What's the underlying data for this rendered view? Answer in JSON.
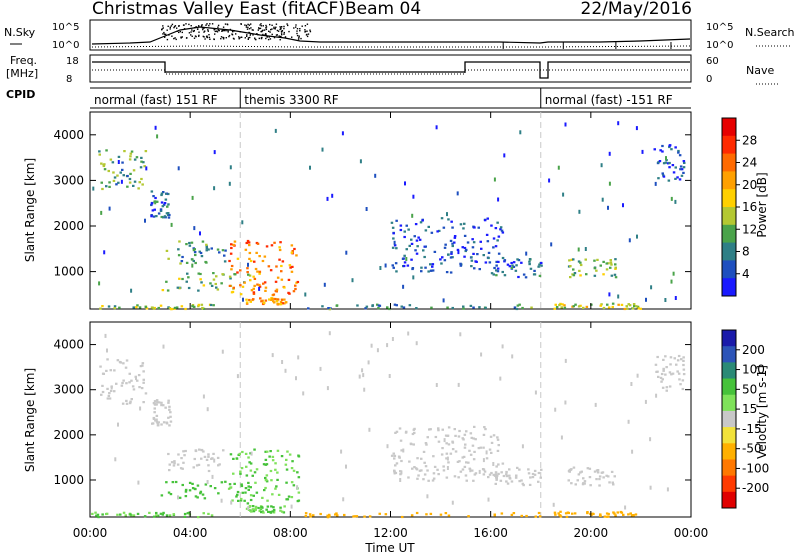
{
  "header": {
    "title": "Christmas Valley East (fitACF)",
    "beam": "Beam 04",
    "date": "22/May/2016"
  },
  "strip_labels": {
    "nsky": "N.Sky",
    "nsearch": "N.Search",
    "freq_line1": "Freq.",
    "freq_line2": "[MHz]",
    "nave": "Nave",
    "cpid": "CPID",
    "noise_ticks": [
      "10^5",
      "10^0"
    ],
    "freq_ticks": [
      "18",
      "8"
    ],
    "nave_ticks": [
      "60",
      "0"
    ]
  },
  "cpid_segments": [
    {
      "label": "normal (fast) 151 RF",
      "start_hour": 0,
      "end_hour": 6
    },
    {
      "label": "themis 3300 RF",
      "start_hour": 6,
      "end_hour": 18
    },
    {
      "label": "normal (fast) -151 RF",
      "start_hour": 18,
      "end_hour": 24
    }
  ],
  "axes": {
    "ylabel": "Slant Range [km]",
    "xlabel": "Time UT",
    "y_ticks": [
      "1000",
      "2000",
      "3000",
      "4000"
    ],
    "x_ticks": [
      "00:00",
      "04:00",
      "08:00",
      "12:00",
      "16:00",
      "20:00",
      "00:00"
    ]
  },
  "power_bar": {
    "label": "Power [dB]",
    "ticks": [
      "4",
      "8",
      "12",
      "16",
      "20",
      "24",
      "28"
    ],
    "colors": [
      "#1a1aff",
      "#1e4fbf",
      "#2f7f86",
      "#4aa34a",
      "#b4c832",
      "#ffd000",
      "#ffa000",
      "#ff6a00",
      "#ff2a00",
      "#e60000"
    ]
  },
  "velocity_bar": {
    "label": "Velocity [m s-1]",
    "ticks": [
      "200",
      "100",
      "50",
      "15",
      "-15",
      "-50",
      "-100",
      "-200"
    ],
    "colors": [
      "#1a1aaa",
      "#2c54b8",
      "#2a8a76",
      "#46c23a",
      "#7fe25a",
      "#c8c8c8",
      "#f2e23a",
      "#ffb000",
      "#ff7800",
      "#ff3a00",
      "#e00000"
    ]
  },
  "chart_data": [
    {
      "type": "heatmap",
      "title": "Power",
      "xlabel": "Time UT",
      "ylabel": "Slant Range [km]",
      "xlim": [
        0,
        24
      ],
      "ylim": [
        180,
        4500
      ],
      "colorbar_label": "Power [dB]",
      "colorbar_ticks": [
        4,
        8,
        12,
        16,
        20,
        24,
        28
      ],
      "regions": [
        {
          "t0": 0.3,
          "t1": 2.2,
          "r0": 2700,
          "r1": 3700,
          "value": 12
        },
        {
          "t0": 2.4,
          "t1": 3.2,
          "r0": 2200,
          "r1": 2800,
          "value": 8
        },
        {
          "t0": 2.8,
          "t1": 6.5,
          "r0": 600,
          "r1": 1000,
          "value": 14
        },
        {
          "t0": 3.0,
          "t1": 5.5,
          "r0": 1200,
          "r1": 1700,
          "value": 10
        },
        {
          "t0": 5.5,
          "t1": 8.3,
          "r0": 500,
          "r1": 1700,
          "value": 24
        },
        {
          "t0": 6.2,
          "t1": 7.8,
          "r0": 300,
          "r1": 450,
          "value": 22
        },
        {
          "t0": 8.5,
          "t1": 18.0,
          "r0": 200,
          "r1": 300,
          "value": 10
        },
        {
          "t0": 12.0,
          "t1": 16.5,
          "r0": 1000,
          "r1": 2200,
          "value": 6
        },
        {
          "t0": 16.0,
          "t1": 18.0,
          "r0": 900,
          "r1": 1300,
          "value": 8
        },
        {
          "t0": 18.5,
          "t1": 22.0,
          "r0": 200,
          "r1": 320,
          "value": 16
        },
        {
          "t0": 19.0,
          "t1": 21.0,
          "r0": 900,
          "r1": 1300,
          "value": 14
        },
        {
          "t0": 22.5,
          "t1": 23.7,
          "r0": 3000,
          "r1": 3800,
          "value": 6
        },
        {
          "t0": 0.0,
          "t1": 5.0,
          "r0": 200,
          "r1": 300,
          "value": 14
        }
      ]
    },
    {
      "type": "heatmap",
      "title": "Velocity",
      "xlabel": "Time UT",
      "ylabel": "Slant Range [km]",
      "xlim": [
        0,
        24
      ],
      "ylim": [
        180,
        4500
      ],
      "colorbar_label": "Velocity [m s-1]",
      "colorbar_ticks": [
        200,
        100,
        50,
        15,
        -15,
        -50,
        -100,
        -200
      ],
      "regions": [
        {
          "t0": 0.3,
          "t1": 2.2,
          "r0": 2700,
          "r1": 3700,
          "value": 0
        },
        {
          "t0": 2.4,
          "t1": 3.2,
          "r0": 2200,
          "r1": 2800,
          "value": 0
        },
        {
          "t0": 2.8,
          "t1": 6.5,
          "r0": 600,
          "r1": 1000,
          "value": 40
        },
        {
          "t0": 3.0,
          "t1": 5.5,
          "r0": 1200,
          "r1": 1700,
          "value": 0
        },
        {
          "t0": 5.5,
          "t1": 8.3,
          "r0": 500,
          "r1": 1700,
          "value": 30
        },
        {
          "t0": 6.2,
          "t1": 7.8,
          "r0": 300,
          "r1": 450,
          "value": 30
        },
        {
          "t0": 8.5,
          "t1": 18.0,
          "r0": 200,
          "r1": 300,
          "value": -40
        },
        {
          "t0": 12.0,
          "t1": 16.5,
          "r0": 1000,
          "r1": 2200,
          "value": 0
        },
        {
          "t0": 16.0,
          "t1": 18.0,
          "r0": 900,
          "r1": 1300,
          "value": 0
        },
        {
          "t0": 18.5,
          "t1": 22.0,
          "r0": 200,
          "r1": 320,
          "value": -40
        },
        {
          "t0": 19.0,
          "t1": 21.0,
          "r0": 900,
          "r1": 1300,
          "value": 0
        },
        {
          "t0": 22.5,
          "t1": 23.7,
          "r0": 3000,
          "r1": 3800,
          "value": 0
        },
        {
          "t0": 0.0,
          "t1": 5.0,
          "r0": 200,
          "r1": 300,
          "value": 30
        }
      ]
    }
  ]
}
